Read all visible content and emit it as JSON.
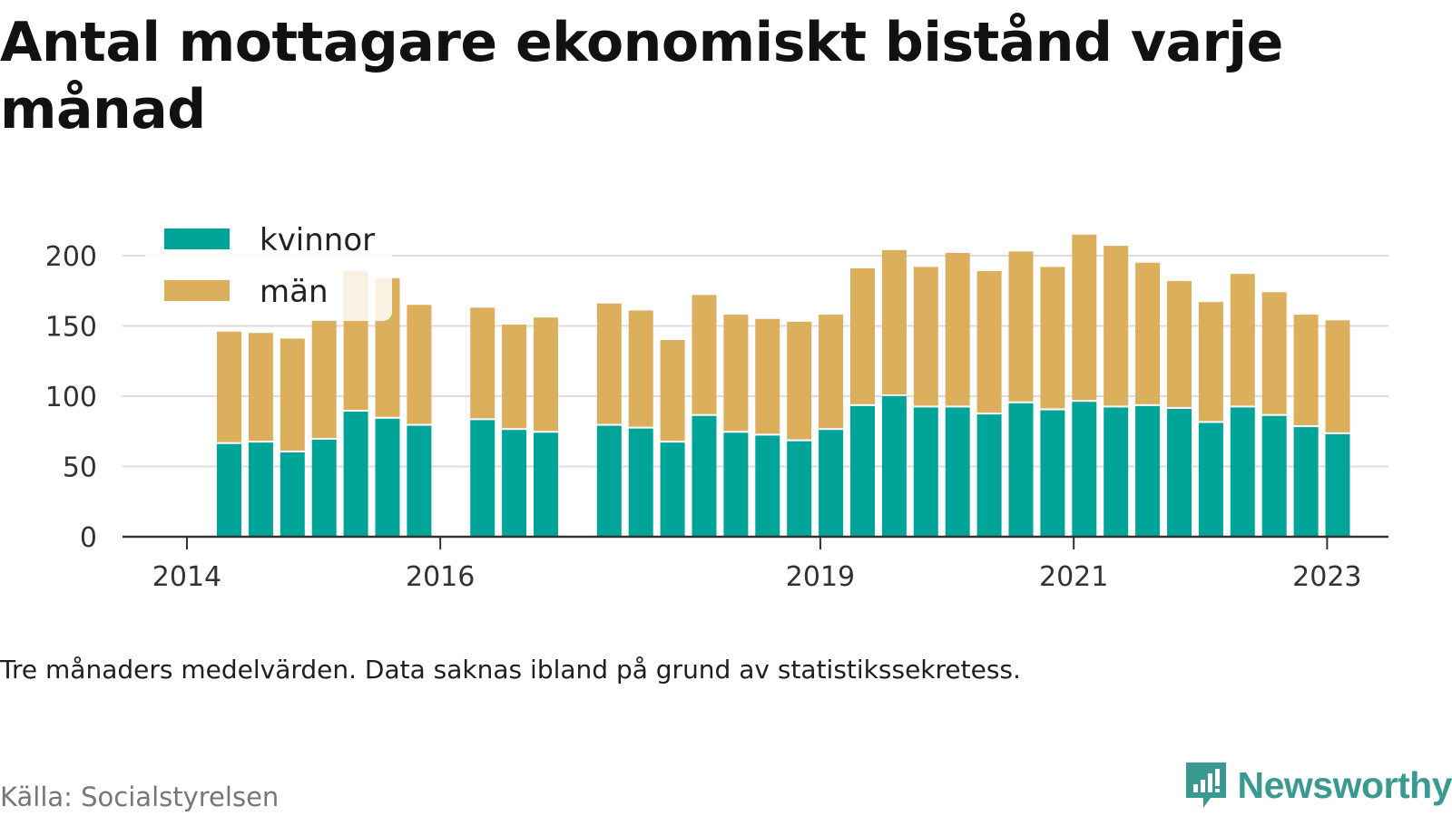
{
  "title": "Antal mottagare ekonomiskt bistånd varje månad",
  "note": "Tre månaders medelvärden. Data saknas ibland på grund av statistikssekretess.",
  "source": "Källa: Socialstyrelsen",
  "brand": "Newsworthy",
  "colors": {
    "kvinnor": "#00a499",
    "man": "#dcaf5c",
    "grid": "#dcdcdc",
    "axis": "#333333",
    "brand": "#3a9a92"
  },
  "chart_data": {
    "type": "bar",
    "stacked": true,
    "time_unit": "quarter",
    "x_tick_labels": [
      "2014",
      "2016",
      "2019",
      "2021",
      "2023"
    ],
    "x_tick_dates": [
      "2014-01",
      "2016-01",
      "2019-01",
      "2021-01",
      "2023-01"
    ],
    "y_ticks": [
      0,
      50,
      100,
      150,
      200
    ],
    "ylim": [
      0,
      200
    ],
    "grid": true,
    "legend_position": "top-left",
    "periods": [
      "2014-Q2",
      "2014-Q3",
      "2014-Q4",
      "2015-Q1",
      "2015-Q2",
      "2015-Q3",
      "2015-Q4",
      "2016-Q2",
      "2016-Q3",
      "2016-Q4",
      "2017-Q2",
      "2017-Q3",
      "2017-Q4",
      "2018-Q1",
      "2018-Q2",
      "2018-Q3",
      "2018-Q4",
      "2019-Q1",
      "2019-Q2",
      "2019-Q3",
      "2019-Q4",
      "2020-Q1",
      "2020-Q2",
      "2020-Q3",
      "2020-Q4",
      "2021-Q1",
      "2021-Q2",
      "2021-Q3",
      "2021-Q4",
      "2022-Q1",
      "2022-Q2",
      "2022-Q3",
      "2022-Q4",
      "2023-Q1"
    ],
    "series": [
      {
        "name": "kvinnor",
        "values": [
          66,
          67,
          60,
          69,
          89,
          84,
          79,
          83,
          76,
          74,
          79,
          77,
          67,
          86,
          74,
          72,
          68,
          76,
          93,
          100,
          92,
          92,
          87,
          95,
          90,
          96,
          92,
          93,
          91,
          81,
          92,
          86,
          78,
          73
        ]
      },
      {
        "name": "män",
        "values": [
          80,
          78,
          81,
          85,
          100,
          100,
          86,
          80,
          75,
          82,
          87,
          84,
          73,
          86,
          84,
          83,
          85,
          82,
          98,
          104,
          100,
          110,
          102,
          108,
          102,
          119,
          115,
          102,
          91,
          86,
          95,
          88,
          80,
          81
        ]
      }
    ]
  }
}
